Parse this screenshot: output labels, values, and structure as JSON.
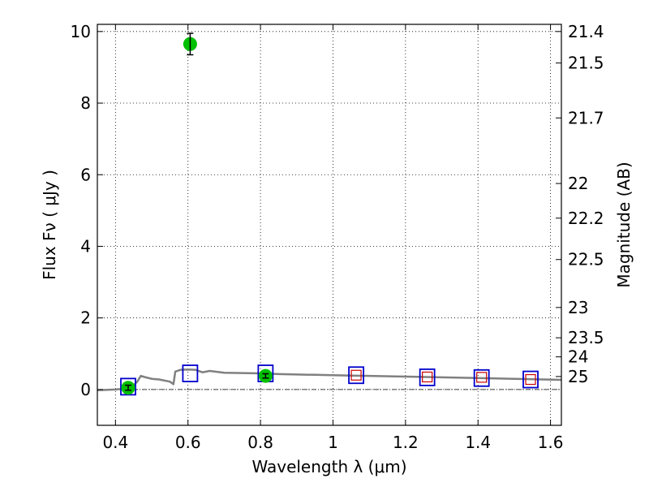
{
  "chart_data": {
    "type": "scatter",
    "title": "",
    "xlabel": "Wavelength  λ (μm)",
    "ylabel": "Flux  Fν  ( μJy )",
    "y2label": "Magnitude (AB)",
    "xlim": [
      0.35,
      1.63
    ],
    "ylim": [
      -1.0,
      10.2
    ],
    "grid": true,
    "x_ticks": [
      0.4,
      0.6,
      0.8,
      1.0,
      1.2,
      1.4,
      1.6
    ],
    "x_tick_labels": [
      "0.4",
      "0.6",
      "0.8",
      "1",
      "1.2",
      "1.4",
      "1.6"
    ],
    "y_ticks": [
      0,
      2,
      4,
      6,
      8,
      10
    ],
    "y_tick_labels": [
      "0",
      "2",
      "4",
      "6",
      "8",
      "10"
    ],
    "mag_ticks": [
      "21.4",
      "21.5",
      "21.7",
      "22",
      "22.2",
      "22.5",
      "23",
      "23.5",
      "24",
      "25"
    ],
    "reference_line": {
      "y": 0,
      "style": "dash-dot"
    },
    "series": [
      {
        "kind": "model-spectrum",
        "color": "#808080",
        "x": [
          0.35,
          0.4,
          0.43,
          0.45,
          0.46,
          0.47,
          0.48,
          0.5,
          0.52,
          0.55,
          0.56,
          0.565,
          0.58,
          0.6,
          0.62,
          0.64,
          0.66,
          0.7,
          0.75,
          0.8,
          0.85,
          0.9,
          0.95,
          1.0,
          1.05,
          1.1,
          1.2,
          1.3,
          1.4,
          1.5,
          1.63
        ],
        "y": [
          -0.02,
          0.0,
          0.03,
          0.12,
          0.22,
          0.38,
          0.35,
          0.3,
          0.28,
          0.22,
          0.15,
          0.5,
          0.55,
          0.56,
          0.55,
          0.48,
          0.52,
          0.47,
          0.46,
          0.45,
          0.43,
          0.42,
          0.41,
          0.4,
          0.39,
          0.38,
          0.36,
          0.34,
          0.32,
          0.3,
          0.27
        ]
      },
      {
        "kind": "model-photometry",
        "color": "#0000cc",
        "x": [
          0.435,
          0.606,
          0.814,
          1.064,
          1.26,
          1.41,
          1.545
        ],
        "y": [
          0.08,
          0.45,
          0.45,
          0.4,
          0.34,
          0.32,
          0.28
        ]
      },
      {
        "kind": "upper-limit",
        "color": "#cc0000",
        "x": [
          1.064,
          1.26,
          1.41,
          1.545
        ],
        "y": [
          0.4,
          0.35,
          0.34,
          0.28
        ]
      },
      {
        "kind": "detection",
        "color": "#00c000",
        "x": [
          0.435,
          0.606,
          0.814
        ],
        "y": [
          0.05,
          9.65,
          0.38
        ],
        "yerr": [
          0.07,
          0.3,
          0.06
        ]
      }
    ]
  }
}
